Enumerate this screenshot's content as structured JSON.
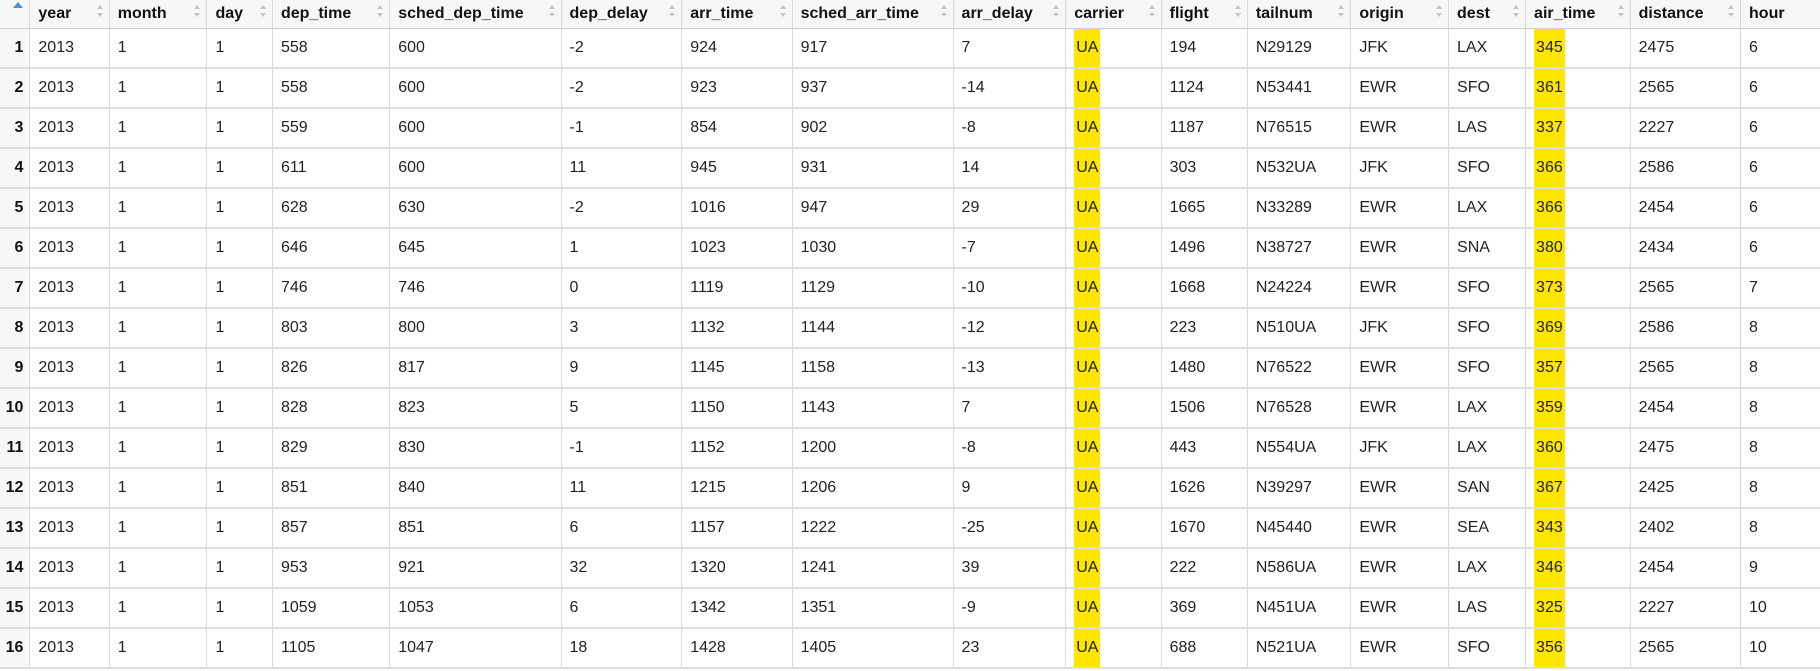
{
  "highlight_color": "#ffe600",
  "sort_indicator": {
    "column": "row-number",
    "direction": "ascending",
    "icon": "sort-ascending-icon"
  },
  "columns": [
    {
      "key": "year",
      "label": "year"
    },
    {
      "key": "month",
      "label": "month"
    },
    {
      "key": "day",
      "label": "day"
    },
    {
      "key": "dep_time",
      "label": "dep_time"
    },
    {
      "key": "sched_dep_time",
      "label": "sched_dep_time"
    },
    {
      "key": "dep_delay",
      "label": "dep_delay"
    },
    {
      "key": "arr_time",
      "label": "arr_time"
    },
    {
      "key": "sched_arr_time",
      "label": "sched_arr_time"
    },
    {
      "key": "arr_delay",
      "label": "arr_delay"
    },
    {
      "key": "carrier",
      "label": "carrier",
      "highlighted": true
    },
    {
      "key": "flight",
      "label": "flight"
    },
    {
      "key": "tailnum",
      "label": "tailnum"
    },
    {
      "key": "origin",
      "label": "origin"
    },
    {
      "key": "dest",
      "label": "dest"
    },
    {
      "key": "air_time",
      "label": "air_time",
      "highlighted": true
    },
    {
      "key": "distance",
      "label": "distance"
    },
    {
      "key": "hour",
      "label": "hour"
    }
  ],
  "rows": [
    {
      "n": "1",
      "cells": [
        "2013",
        "1",
        "1",
        "558",
        "600",
        "-2",
        "924",
        "917",
        "7",
        "UA",
        "194",
        "N29129",
        "JFK",
        "LAX",
        "345",
        "2475",
        "6"
      ]
    },
    {
      "n": "2",
      "cells": [
        "2013",
        "1",
        "1",
        "558",
        "600",
        "-2",
        "923",
        "937",
        "-14",
        "UA",
        "1124",
        "N53441",
        "EWR",
        "SFO",
        "361",
        "2565",
        "6"
      ]
    },
    {
      "n": "3",
      "cells": [
        "2013",
        "1",
        "1",
        "559",
        "600",
        "-1",
        "854",
        "902",
        "-8",
        "UA",
        "1187",
        "N76515",
        "EWR",
        "LAS",
        "337",
        "2227",
        "6"
      ]
    },
    {
      "n": "4",
      "cells": [
        "2013",
        "1",
        "1",
        "611",
        "600",
        "11",
        "945",
        "931",
        "14",
        "UA",
        "303",
        "N532UA",
        "JFK",
        "SFO",
        "366",
        "2586",
        "6"
      ]
    },
    {
      "n": "5",
      "cells": [
        "2013",
        "1",
        "1",
        "628",
        "630",
        "-2",
        "1016",
        "947",
        "29",
        "UA",
        "1665",
        "N33289",
        "EWR",
        "LAX",
        "366",
        "2454",
        "6"
      ]
    },
    {
      "n": "6",
      "cells": [
        "2013",
        "1",
        "1",
        "646",
        "645",
        "1",
        "1023",
        "1030",
        "-7",
        "UA",
        "1496",
        "N38727",
        "EWR",
        "SNA",
        "380",
        "2434",
        "6"
      ]
    },
    {
      "n": "7",
      "cells": [
        "2013",
        "1",
        "1",
        "746",
        "746",
        "0",
        "1119",
        "1129",
        "-10",
        "UA",
        "1668",
        "N24224",
        "EWR",
        "SFO",
        "373",
        "2565",
        "7"
      ]
    },
    {
      "n": "8",
      "cells": [
        "2013",
        "1",
        "1",
        "803",
        "800",
        "3",
        "1132",
        "1144",
        "-12",
        "UA",
        "223",
        "N510UA",
        "JFK",
        "SFO",
        "369",
        "2586",
        "8"
      ]
    },
    {
      "n": "9",
      "cells": [
        "2013",
        "1",
        "1",
        "826",
        "817",
        "9",
        "1145",
        "1158",
        "-13",
        "UA",
        "1480",
        "N76522",
        "EWR",
        "SFO",
        "357",
        "2565",
        "8"
      ]
    },
    {
      "n": "10",
      "cells": [
        "2013",
        "1",
        "1",
        "828",
        "823",
        "5",
        "1150",
        "1143",
        "7",
        "UA",
        "1506",
        "N76528",
        "EWR",
        "LAX",
        "359",
        "2454",
        "8"
      ]
    },
    {
      "n": "11",
      "cells": [
        "2013",
        "1",
        "1",
        "829",
        "830",
        "-1",
        "1152",
        "1200",
        "-8",
        "UA",
        "443",
        "N554UA",
        "JFK",
        "LAX",
        "360",
        "2475",
        "8"
      ]
    },
    {
      "n": "12",
      "cells": [
        "2013",
        "1",
        "1",
        "851",
        "840",
        "11",
        "1215",
        "1206",
        "9",
        "UA",
        "1626",
        "N39297",
        "EWR",
        "SAN",
        "367",
        "2425",
        "8"
      ]
    },
    {
      "n": "13",
      "cells": [
        "2013",
        "1",
        "1",
        "857",
        "851",
        "6",
        "1157",
        "1222",
        "-25",
        "UA",
        "1670",
        "N45440",
        "EWR",
        "SEA",
        "343",
        "2402",
        "8"
      ]
    },
    {
      "n": "14",
      "cells": [
        "2013",
        "1",
        "1",
        "953",
        "921",
        "32",
        "1320",
        "1241",
        "39",
        "UA",
        "222",
        "N586UA",
        "EWR",
        "LAX",
        "346",
        "2454",
        "9"
      ]
    },
    {
      "n": "15",
      "cells": [
        "2013",
        "1",
        "1",
        "1059",
        "1053",
        "6",
        "1342",
        "1351",
        "-9",
        "UA",
        "369",
        "N451UA",
        "EWR",
        "LAS",
        "325",
        "2227",
        "10"
      ]
    },
    {
      "n": "16",
      "cells": [
        "2013",
        "1",
        "1",
        "1105",
        "1047",
        "18",
        "1428",
        "1405",
        "23",
        "UA",
        "688",
        "N521UA",
        "EWR",
        "SFO",
        "356",
        "2565",
        "10"
      ]
    }
  ]
}
